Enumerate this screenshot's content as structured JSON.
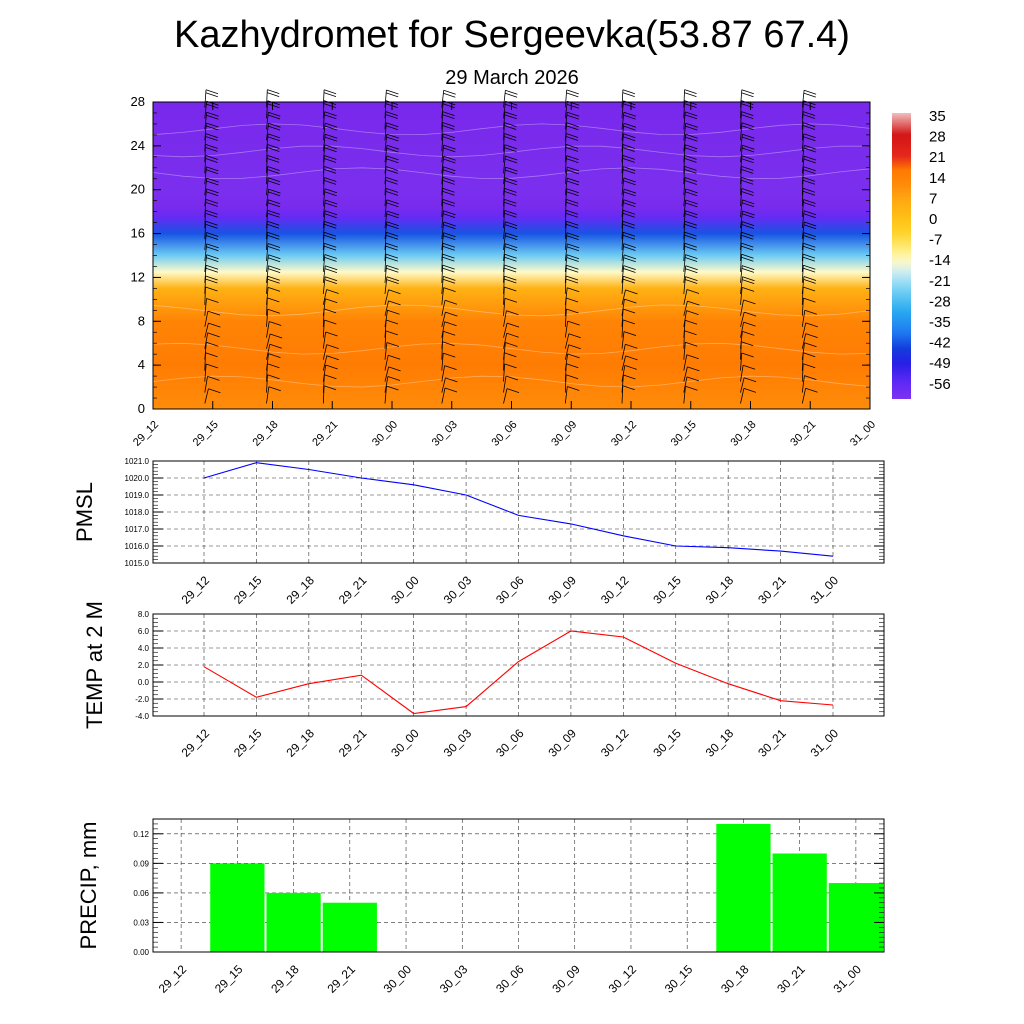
{
  "title": "Kazhydromet for Sergeevka(53.87 67.4)",
  "subtitle": "29 March 2026",
  "chart_data": [
    {
      "type": "heatmap",
      "name": "vertical-section",
      "x_labels": [
        "29_12",
        "29_15",
        "29_18",
        "29_21",
        "30_00",
        "30_03",
        "30_06",
        "30_09",
        "30_12",
        "30_15",
        "30_18",
        "30_21",
        "31_00"
      ],
      "y_ticks": [
        "0",
        "4",
        "8",
        "12",
        "16",
        "20",
        "24",
        "28"
      ],
      "ylim": [
        0,
        28
      ],
      "colorbar_labels": [
        "35",
        "28",
        "21",
        "14",
        "7",
        "0",
        "-7",
        "-14",
        "-21",
        "-28",
        "-35",
        "-42",
        "-49",
        "-56"
      ],
      "colorbar_range": [
        -56,
        35
      ],
      "temperature_profile": [
        {
          "level": 0,
          "value": 12
        },
        {
          "level": 4,
          "value": 16
        },
        {
          "level": 8,
          "value": 14
        },
        {
          "level": 11,
          "value": 5
        },
        {
          "level": 12.5,
          "value": -12
        },
        {
          "level": 14,
          "value": -22
        },
        {
          "level": 16,
          "value": -38
        },
        {
          "level": 17.5,
          "value": -52
        },
        {
          "level": 18.5,
          "value": -60
        },
        {
          "level": 20,
          "value": -58
        },
        {
          "level": 28,
          "value": -62
        }
      ],
      "wind_barbs": true
    },
    {
      "type": "line",
      "name": "pmsl",
      "ylabel": "PMSL",
      "categories": [
        "29_12",
        "29_15",
        "29_18",
        "29_21",
        "30_00",
        "30_03",
        "30_06",
        "30_09",
        "30_12",
        "30_15",
        "30_18",
        "30_21",
        "31_00"
      ],
      "values": [
        1020.0,
        1020.9,
        1020.5,
        1020.0,
        1019.6,
        1019.0,
        1017.8,
        1017.3,
        1016.6,
        1016.0,
        1015.9,
        1015.7,
        1015.4
      ],
      "ylim": [
        1015.0,
        1021.0
      ],
      "y_ticks": [
        "1015.0",
        "1016.0",
        "1017.0",
        "1018.0",
        "1019.0",
        "1020.0",
        "1021.0"
      ],
      "color": "#0000ff",
      "grid": true
    },
    {
      "type": "line",
      "name": "temp",
      "ylabel": "TEMP at 2 M",
      "categories": [
        "29_12",
        "29_15",
        "29_18",
        "29_21",
        "30_00",
        "30_03",
        "30_06",
        "30_09",
        "30_12",
        "30_15",
        "30_18",
        "30_21",
        "31_00"
      ],
      "values": [
        1.8,
        -1.8,
        -0.2,
        0.8,
        -3.7,
        -2.9,
        2.4,
        6.0,
        5.3,
        2.2,
        -0.2,
        -2.2,
        -2.7
      ],
      "ylim": [
        -4.0,
        8.0
      ],
      "y_ticks": [
        "-4.0",
        "-2.0",
        "0.0",
        "2.0",
        "4.0",
        "6.0",
        "8.0"
      ],
      "color": "#ff0000",
      "grid": true
    },
    {
      "type": "bar",
      "name": "precip",
      "ylabel": "PRECIP, mm",
      "categories": [
        "29_12",
        "29_15",
        "29_18",
        "29_21",
        "30_00",
        "30_03",
        "30_06",
        "30_09",
        "30_12",
        "30_15",
        "30_18",
        "30_21",
        "31_00"
      ],
      "values": [
        0,
        0.09,
        0.06,
        0.05,
        0,
        0,
        0,
        0,
        0,
        0,
        0.13,
        0.1,
        0.07
      ],
      "ylim": [
        0,
        0.135
      ],
      "y_ticks": [
        "0.00",
        "0.03",
        "0.06",
        "0.09",
        "0.12"
      ],
      "color": "#00ff00",
      "grid": true
    }
  ]
}
